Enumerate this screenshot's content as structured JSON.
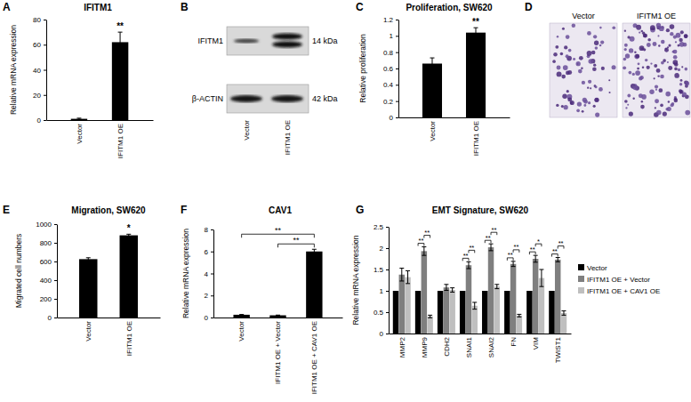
{
  "chart_data": [
    {
      "panel_label": "A",
      "type": "bar",
      "title": "IFITM1",
      "y_label": "Relative mRNA expression",
      "categories": [
        "Vector",
        "IFITM1 OE"
      ],
      "values": [
        1,
        62
      ],
      "errors": [
        0.5,
        8
      ],
      "color": "#000000",
      "ylim": [
        0,
        80
      ],
      "yticks": [
        0,
        20,
        40,
        60,
        80
      ],
      "annotations": [
        {
          "text": "**",
          "category": 1
        }
      ]
    },
    {
      "panel_label": "B",
      "type": "blot",
      "lanes": [
        "Vector",
        "IFITM1 OE"
      ],
      "rows": [
        {
          "name": "IFITM1",
          "size": "14 kDa"
        },
        {
          "name": "β-ACTIN",
          "size": "42 kDa"
        }
      ]
    },
    {
      "panel_label": "C",
      "type": "bar",
      "title": "Proliferation, SW620",
      "y_label": "Relative proliferation",
      "categories": [
        "Vector",
        "IFITM1 OE"
      ],
      "values": [
        0.66,
        1.04
      ],
      "errors": [
        0.07,
        0.06
      ],
      "color": "#000000",
      "ylim": [
        0,
        1.2
      ],
      "yticks": [
        0,
        0.2,
        0.4,
        0.6,
        0.8,
        1,
        1.2
      ],
      "annotations": [
        {
          "text": "**",
          "category": 1
        }
      ]
    },
    {
      "panel_label": "D",
      "type": "micrograph",
      "categories": [
        "Vector",
        "IFITM1 OE"
      ]
    },
    {
      "panel_label": "E",
      "type": "bar",
      "title": "Migration, SW620",
      "y_label": "Migrated cell numbers",
      "categories": [
        "Vector",
        "IFITM1 OE"
      ],
      "values": [
        625,
        880
      ],
      "errors": [
        15,
        12
      ],
      "color": "#000000",
      "ylim": [
        0,
        1000
      ],
      "yticks": [
        0,
        200,
        400,
        600,
        800,
        1000
      ],
      "annotations": [
        {
          "text": "*",
          "category": 1
        }
      ]
    },
    {
      "panel_label": "F",
      "type": "bar",
      "title": "CAV1",
      "y_label": "Relative mRNA expression",
      "categories": [
        "Vector",
        "IFITM1 OE + Vector",
        "IFITM1 OE + CAV1 OE"
      ],
      "values": [
        0.25,
        0.2,
        6.0
      ],
      "errors": [
        0.02,
        0.02,
        0.2
      ],
      "color": "#000000",
      "ylim": [
        0,
        8
      ],
      "yticks": [
        0,
        2,
        4,
        6,
        8
      ],
      "annotations": [
        {
          "text": "**",
          "from": 0,
          "to": 2
        },
        {
          "text": "**",
          "from": 1,
          "to": 2
        }
      ]
    },
    {
      "panel_label": "G",
      "type": "bar",
      "title": "EMT Signature, SW620",
      "y_label": "Relative mRNA expression",
      "categories": [
        "MMP2",
        "MMP9",
        "CDH2",
        "SNAI1",
        "SNAI2",
        "FN",
        "VIM",
        "TWIST1"
      ],
      "series": [
        {
          "name": "Vector",
          "color": "#000000",
          "values": [
            1,
            1,
            1,
            1,
            1,
            1,
            1,
            1
          ]
        },
        {
          "name": "IFITM1 OE + Vector",
          "color": "#7f7f7f",
          "values": [
            1.38,
            1.93,
            1.08,
            1.6,
            2.02,
            1.63,
            1.75,
            1.73
          ],
          "errors": [
            0.15,
            0.1,
            0.07,
            0.08,
            0.08,
            0.06,
            0.08,
            0.05
          ]
        },
        {
          "name": "IFITM1 OE + CAV1 OE",
          "color": "#bfbfbf",
          "values": [
            1.32,
            0.4,
            1.02,
            0.65,
            1.1,
            0.42,
            1.3,
            0.48
          ],
          "errors": [
            0.15,
            0.03,
            0.05,
            0.08,
            0.05,
            0.03,
            0.2,
            0.05
          ]
        }
      ],
      "ylim": [
        0,
        2.5
      ],
      "yticks": [
        0,
        0.5,
        1,
        1.5,
        2,
        2.5
      ],
      "legend": "right",
      "annotations": [
        {
          "text": "**",
          "category": 1,
          "from": 0,
          "to": 1
        },
        {
          "text": "**",
          "category": 1,
          "from": 1,
          "to": 2
        },
        {
          "text": "**",
          "category": 3,
          "from": 0,
          "to": 1
        },
        {
          "text": "**",
          "category": 3,
          "from": 1,
          "to": 2
        },
        {
          "text": "**",
          "category": 4,
          "from": 0,
          "to": 1
        },
        {
          "text": "**",
          "category": 4,
          "from": 1,
          "to": 2
        },
        {
          "text": "**",
          "category": 5,
          "from": 0,
          "to": 1
        },
        {
          "text": "**",
          "category": 5,
          "from": 1,
          "to": 2
        },
        {
          "text": "**",
          "category": 6,
          "from": 0,
          "to": 1
        },
        {
          "text": "*",
          "category": 6,
          "from": 1,
          "to": 2
        },
        {
          "text": "**",
          "category": 7,
          "from": 0,
          "to": 1
        },
        {
          "text": "**",
          "category": 7,
          "from": 1,
          "to": 2
        }
      ]
    }
  ]
}
